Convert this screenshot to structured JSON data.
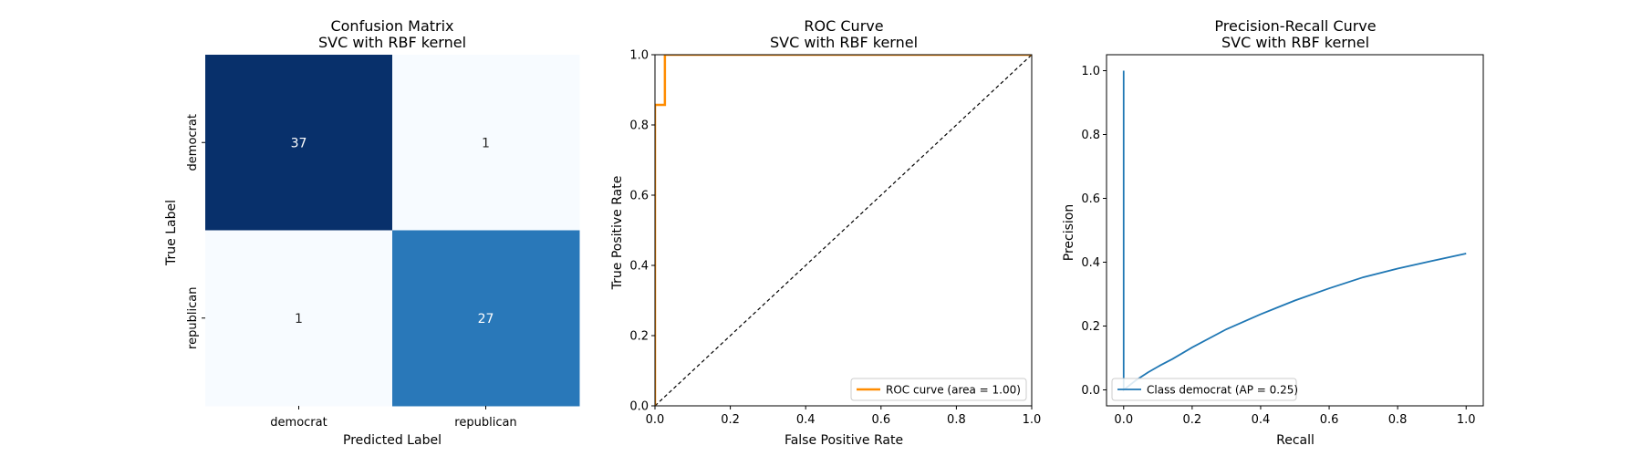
{
  "chart_data": [
    {
      "type": "heatmap",
      "title_line1": "Confusion Matrix",
      "title_line2": "SVC with RBF kernel",
      "xlabel": "Predicted Label",
      "ylabel": "True Label",
      "x_categories": [
        "democrat",
        "republican"
      ],
      "y_categories": [
        "democrat",
        "republican"
      ],
      "values": [
        [
          37,
          1
        ],
        [
          1,
          27
        ]
      ],
      "colormap": [
        "#f7fbff",
        "#c6dbef",
        "#6baed6",
        "#2171b5",
        "#08306b"
      ],
      "cell_text_light": "#ffffff",
      "cell_text_dark": "#262626"
    },
    {
      "type": "line",
      "title_line1": "ROC Curve",
      "title_line2": "SVC with RBF kernel",
      "xlabel": "False Positive Rate",
      "ylabel": "True Positive Rate",
      "xlim": [
        0.0,
        1.0
      ],
      "ylim": [
        0.0,
        1.0
      ],
      "xticks": [
        "0.0",
        "0.2",
        "0.4",
        "0.6",
        "0.8",
        "1.0"
      ],
      "yticks": [
        "0.0",
        "0.2",
        "0.4",
        "0.6",
        "0.8",
        "1.0"
      ],
      "series": [
        {
          "name": "ROC curve (area = 1.00)",
          "color": "#ff8c00",
          "x": [
            0.0,
            0.0,
            0.0263,
            0.0263,
            1.0
          ],
          "y": [
            0.0,
            0.857,
            0.857,
            1.0,
            1.0
          ]
        }
      ],
      "reference_line": {
        "x": [
          0.0,
          1.0
        ],
        "y": [
          0.0,
          1.0
        ],
        "color": "#000000",
        "style": "dashed"
      },
      "legend_placement": "lower-right"
    },
    {
      "type": "line",
      "title_line1": "Precision-Recall Curve",
      "title_line2": "SVC with RBF kernel",
      "xlabel": "Recall",
      "ylabel": "Precision",
      "xlim": [
        -0.05,
        1.05
      ],
      "ylim": [
        -0.05,
        1.05
      ],
      "xticks": [
        "0.0",
        "0.2",
        "0.4",
        "0.6",
        "0.8",
        "1.0"
      ],
      "yticks": [
        "0.0",
        "0.2",
        "0.4",
        "0.6",
        "0.8",
        "1.0"
      ],
      "series": [
        {
          "name": "Class democrat (AP = 0.25)",
          "color": "#1f77b4",
          "x": [
            0.0,
            0.0,
            0.0,
            0.0,
            0.0357,
            0.0714,
            0.1071,
            0.1429,
            0.2,
            0.3,
            0.4,
            0.5,
            0.6,
            0.7,
            0.8,
            0.9,
            1.0
          ],
          "y": [
            1.0,
            0.0,
            0.0,
            0.0,
            0.03,
            0.055,
            0.077,
            0.097,
            0.133,
            0.19,
            0.237,
            0.28,
            0.318,
            0.353,
            0.38,
            0.404,
            0.427
          ]
        }
      ],
      "legend_placement": "lower-left"
    }
  ]
}
